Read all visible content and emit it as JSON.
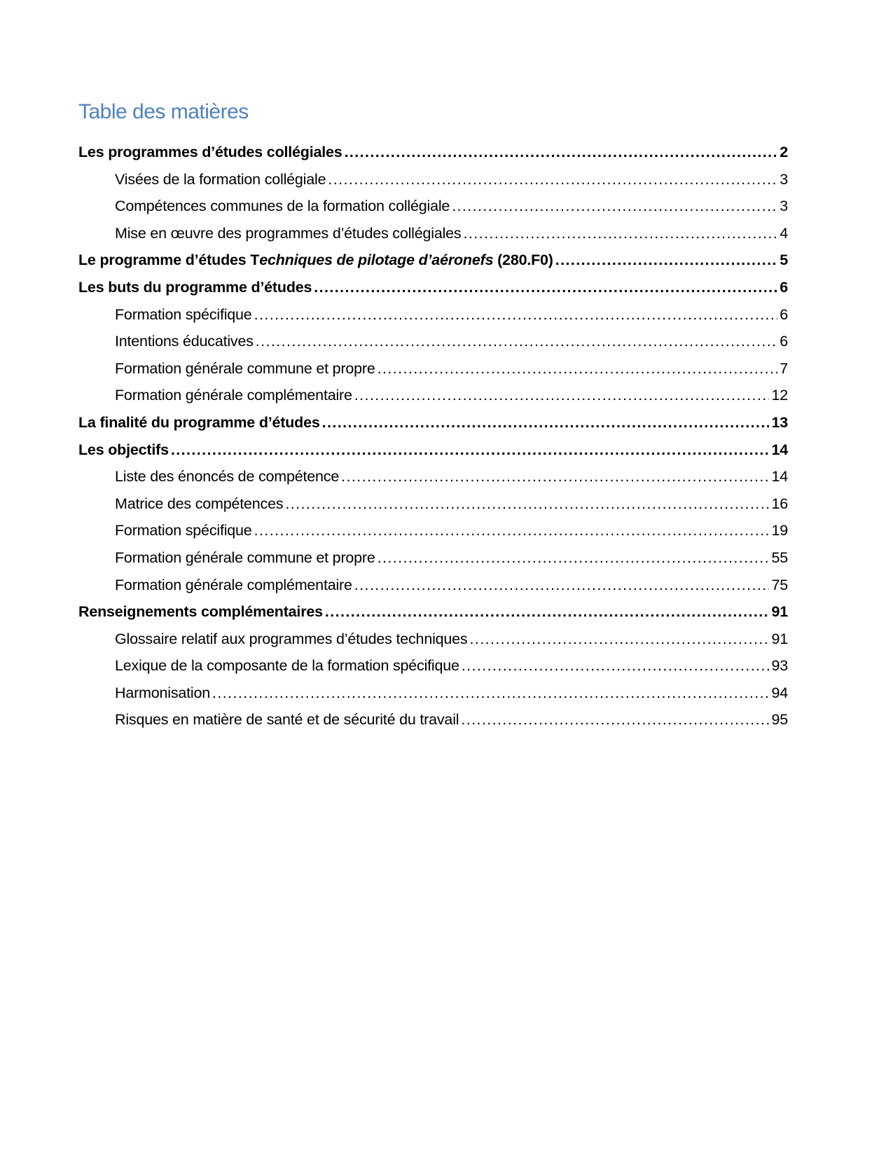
{
  "title": {
    "text": "Table des matières",
    "color": "#4F81BD"
  },
  "toc": {
    "dot_leader_char": ".",
    "entries": [
      {
        "level": 1,
        "bold": true,
        "page": "2",
        "parts": [
          {
            "text": "Les programmes d’études collégiales",
            "italic": false
          }
        ]
      },
      {
        "level": 2,
        "bold": false,
        "page": "3",
        "parts": [
          {
            "text": "Visées de la formation collégiale",
            "italic": false
          }
        ]
      },
      {
        "level": 2,
        "bold": false,
        "page": "3",
        "parts": [
          {
            "text": "Compétences communes de la formation collégiale",
            "italic": false
          }
        ]
      },
      {
        "level": 2,
        "bold": false,
        "page": "4",
        "parts": [
          {
            "text": "Mise en œuvre des programmes d’études collégiales",
            "italic": false
          }
        ]
      },
      {
        "level": 1,
        "bold": true,
        "page": "5",
        "parts": [
          {
            "text": "Le programme d’études T",
            "italic": false
          },
          {
            "text": "echniques de pilotage d’aéronefs",
            "italic": true
          },
          {
            "text": " (280.F0)",
            "italic": false
          }
        ]
      },
      {
        "level": 1,
        "bold": true,
        "page": "6",
        "parts": [
          {
            "text": "Les buts du programme d’études",
            "italic": false
          }
        ]
      },
      {
        "level": 2,
        "bold": false,
        "page": "6",
        "parts": [
          {
            "text": "Formation spécifique",
            "italic": false
          }
        ]
      },
      {
        "level": 2,
        "bold": false,
        "page": "6",
        "parts": [
          {
            "text": "Intentions éducatives",
            "italic": false
          }
        ]
      },
      {
        "level": 2,
        "bold": false,
        "page": "7",
        "parts": [
          {
            "text": "Formation générale commune et propre",
            "italic": false
          }
        ]
      },
      {
        "level": 2,
        "bold": false,
        "page": "12",
        "parts": [
          {
            "text": "Formation générale complémentaire",
            "italic": false
          }
        ]
      },
      {
        "level": 1,
        "bold": true,
        "page": "13",
        "parts": [
          {
            "text": "La finalité du programme d’études",
            "italic": false
          }
        ]
      },
      {
        "level": 1,
        "bold": true,
        "page": "14",
        "parts": [
          {
            "text": "Les objectifs",
            "italic": false
          }
        ]
      },
      {
        "level": 2,
        "bold": false,
        "page": "14",
        "parts": [
          {
            "text": "Liste des énoncés de compétence",
            "italic": false
          }
        ]
      },
      {
        "level": 2,
        "bold": false,
        "page": "16",
        "parts": [
          {
            "text": "Matrice des compétences",
            "italic": false
          }
        ]
      },
      {
        "level": 2,
        "bold": false,
        "page": "19",
        "parts": [
          {
            "text": "Formation spécifique",
            "italic": false
          }
        ]
      },
      {
        "level": 2,
        "bold": false,
        "page": "55",
        "parts": [
          {
            "text": "Formation générale commune et propre",
            "italic": false
          }
        ]
      },
      {
        "level": 2,
        "bold": false,
        "page": "75",
        "parts": [
          {
            "text": "Formation générale complémentaire",
            "italic": false
          }
        ]
      },
      {
        "level": 1,
        "bold": true,
        "page": "91",
        "parts": [
          {
            "text": "Renseignements complémentaires",
            "italic": false
          }
        ]
      },
      {
        "level": 2,
        "bold": false,
        "page": "91",
        "parts": [
          {
            "text": "Glossaire relatif aux programmes d’études techniques",
            "italic": false
          }
        ]
      },
      {
        "level": 2,
        "bold": false,
        "page": "93",
        "parts": [
          {
            "text": "Lexique de la composante de la formation spécifique",
            "italic": false
          }
        ]
      },
      {
        "level": 2,
        "bold": false,
        "page": "94",
        "parts": [
          {
            "text": "Harmonisation",
            "italic": false
          }
        ]
      },
      {
        "level": 2,
        "bold": false,
        "page": "95",
        "parts": [
          {
            "text": "Risques en matière de santé et de sécurité du travail",
            "italic": false
          }
        ]
      }
    ]
  }
}
